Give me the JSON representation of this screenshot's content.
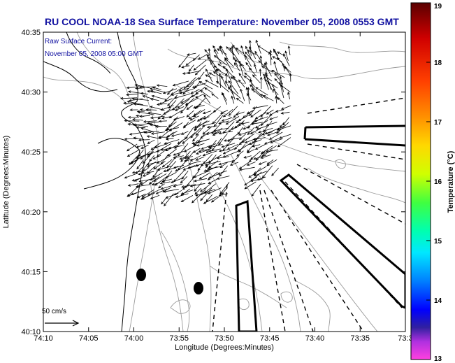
{
  "title": "RU COOL  NOAA-18  Sea Surface Temperature:  November 05, 2008 0553 GMT",
  "legend": {
    "line1": "Raw Surface Current:",
    "line2": "November 05, 2008 05:00 GMT"
  },
  "scale_label": "50 cm/s",
  "y_axis_label": "Latitude (Degrees:Minutes)",
  "x_axis_label": "Longitude (Degrees:Minutes)",
  "y_ticks": [
    "40:35",
    "40:30",
    "40:25",
    "40:20",
    "40:15",
    "40:10"
  ],
  "x_ticks": [
    "74:10",
    "74:05",
    "74:00",
    "73:55",
    "73:50",
    "73:45",
    "73:40",
    "73:35",
    "73:3"
  ],
  "colorbar": {
    "label": "Temperature (°C)",
    "ticks": [
      "19",
      "18",
      "17",
      "16",
      "15",
      "14",
      "13"
    ],
    "range": [
      13,
      19
    ]
  },
  "colors": {
    "title": "#1010a0",
    "legend_text": "#1010a0",
    "contour": "#9a9a9a",
    "coast": "#000000"
  }
}
